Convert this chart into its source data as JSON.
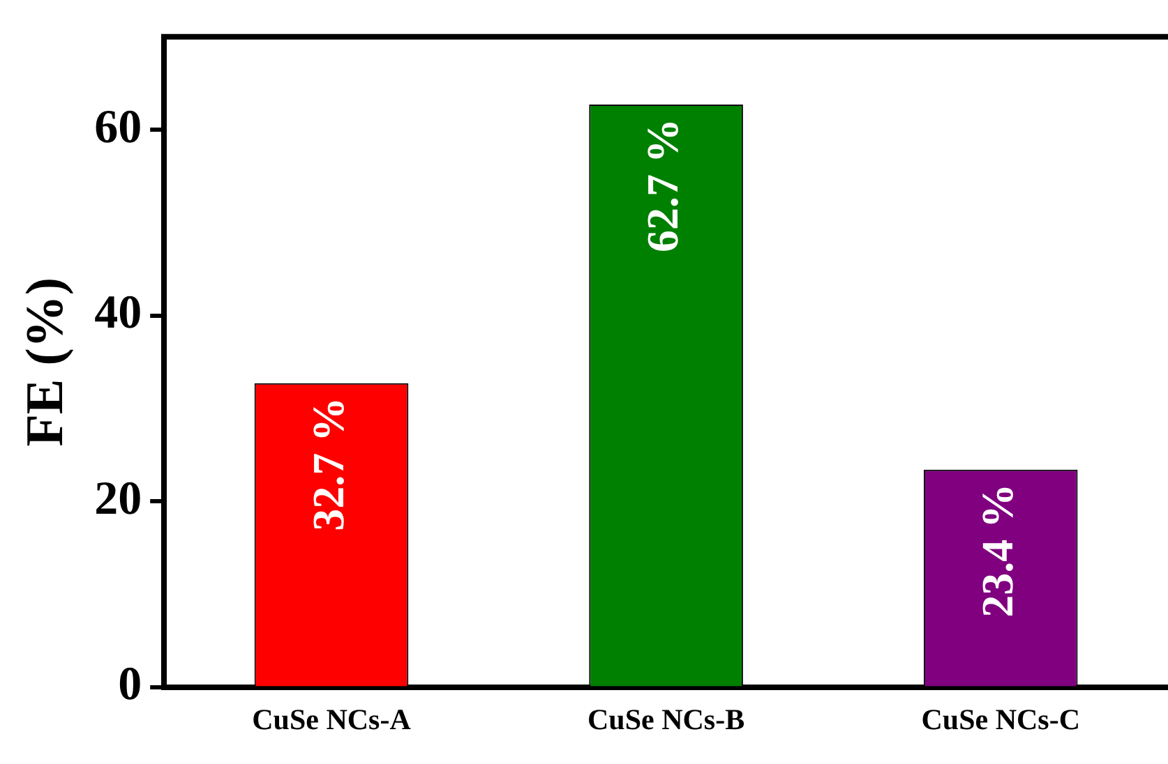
{
  "chart_data": {
    "type": "bar",
    "ylabel": "FE (%)",
    "categories": [
      "CuSe NCs-A",
      "CuSe NCs-B",
      "CuSe NCs-C"
    ],
    "values": [
      32.7,
      62.7,
      23.4
    ],
    "colors": [
      "#ff0000",
      "#008000",
      "#800080"
    ],
    "value_labels": [
      "32.7 %",
      "62.7 %",
      "23.4 %"
    ],
    "ylim": [
      0,
      70
    ],
    "yticks": [
      0,
      20,
      40,
      60
    ],
    "grid": false,
    "legend": false
  }
}
